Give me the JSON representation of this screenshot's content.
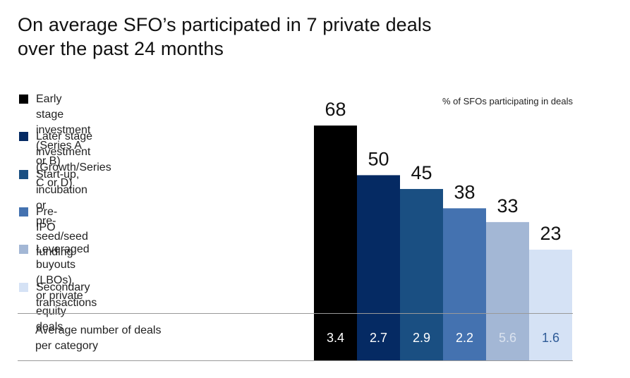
{
  "title": {
    "line1": "On average SFO’s participated in 7 private deals",
    "line2": "over the past 24 months"
  },
  "chart_data": {
    "type": "bar",
    "title": "On average SFO’s participated in 7 private deals over the past 24 months",
    "ylabel": "% of SFOs participating in deals",
    "ylim": [
      0,
      75
    ],
    "categories": [
      "Early stage investment (Series A or B)",
      "Later stage investment (Growth/Series C or D)",
      "Start-up, incubation or pre-seed/seed funding",
      "Pre-IPO",
      "Leveraged buyouts (LBOs) or private equity deals",
      "Secondary transactions"
    ],
    "values": [
      68,
      50,
      45,
      38,
      33,
      23
    ],
    "value_labels": [
      "68",
      "50",
      "45",
      "38",
      "33",
      "23"
    ],
    "colors": [
      "#000000",
      "#052a63",
      "#1a4f82",
      "#4472b0",
      "#a3b7d5",
      "#d5e2f5"
    ],
    "avg_deals_label": [
      "Average number of deals",
      "per category"
    ],
    "avg_deals": [
      "3.4",
      "2.7",
      "2.9",
      "2.2",
      "5.6",
      "1.6"
    ],
    "avg_deals_colors": [
      "#ffffff",
      "#ffffff",
      "#ffffff",
      "#ffffff",
      "#dbe3ef",
      "#2e5a96"
    ]
  },
  "legend": [
    {
      "lines": [
        "Early stage investment",
        "(Series A or B)"
      ],
      "color": "#000000"
    },
    {
      "lines": [
        "Later stage investment",
        "(Growth/Series C or D)"
      ],
      "color": "#052a63"
    },
    {
      "lines": [
        "Start-up, incubation or",
        "pre-seed/seed funding"
      ],
      "color": "#1a4f82"
    },
    {
      "lines": [
        "Pre-IPO"
      ],
      "color": "#4472b0"
    },
    {
      "lines": [
        "Leveraged buyouts (LBOs)",
        "or private equity deals"
      ],
      "color": "#a3b7d5"
    },
    {
      "lines": [
        "Secondary transactions"
      ],
      "color": "#d5e2f5"
    }
  ]
}
